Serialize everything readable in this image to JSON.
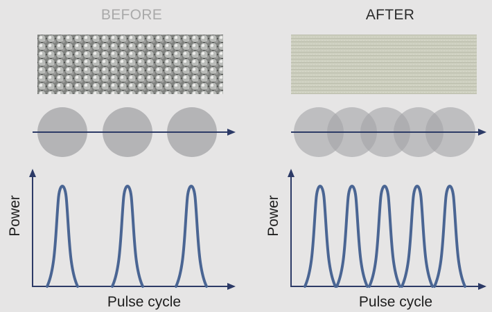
{
  "panels": [
    {
      "id": "before",
      "title": "BEFORE",
      "title_color": "#a9a9a9",
      "surface_texture": "separated-dimples",
      "spot_count": 3,
      "spots_overlap": false,
      "pulse_count": 3,
      "axis_x_label": "Pulse cycle",
      "axis_y_label": "Power"
    },
    {
      "id": "after",
      "title": "AFTER",
      "title_color": "#2b2b2b",
      "surface_texture": "smooth-fine-lines",
      "spot_count": 5,
      "spots_overlap": true,
      "pulse_count": 5,
      "axis_x_label": "Pulse cycle",
      "axis_y_label": "Power"
    }
  ],
  "colors": {
    "background": "#e6e5e5",
    "spot_fill": "#a3a3a6",
    "arrow": "#2c3a66",
    "pulse_line": "#4a6593"
  }
}
